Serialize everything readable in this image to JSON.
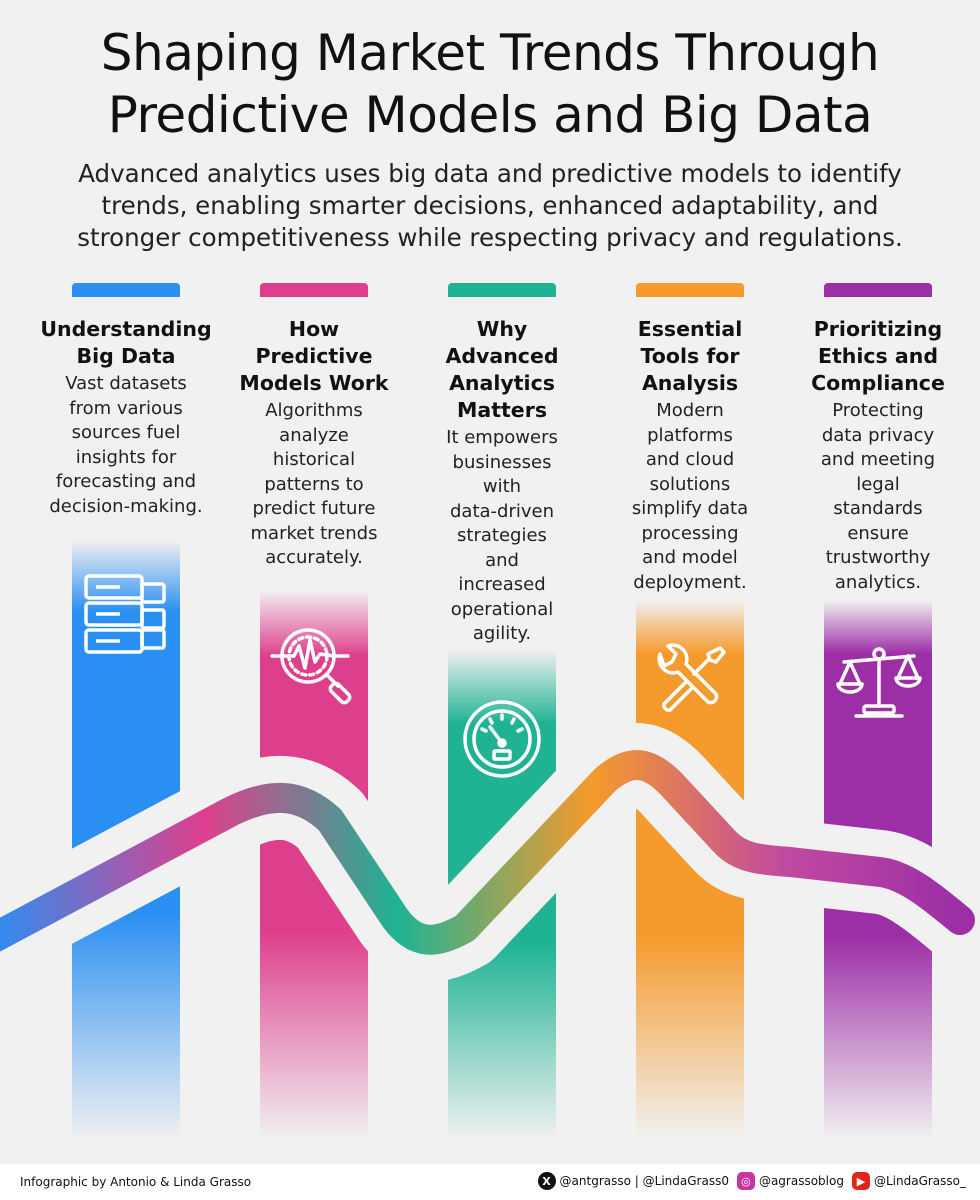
{
  "header": {
    "title_line1": "Shaping Market Trends Through",
    "title_line2": "Predictive Models and Big Data",
    "subtitle_line1": "Advanced analytics uses big data and predictive models to identify",
    "subtitle_line2": "trends, enabling smarter decisions, enhanced adaptability, and",
    "subtitle_line3": "stronger competitiveness while respecting privacy and regulations."
  },
  "columns": [
    {
      "title_lines": [
        "Understanding",
        "Big Data"
      ],
      "body_lines": [
        "Vast datasets",
        "from various",
        "sources fuel",
        "insights for",
        "forecasting and",
        "decision-making."
      ],
      "color": "#2a8ff2",
      "icon": "database-server-icon"
    },
    {
      "title_lines": [
        "How",
        "Predictive",
        "Models Work"
      ],
      "body_lines": [
        "Algorithms",
        "analyze",
        "historical",
        "patterns to",
        "predict future",
        "market trends",
        "accurately."
      ],
      "color": "#de3f8c",
      "icon": "magnifier-pulse-icon"
    },
    {
      "title_lines": [
        "Why",
        "Advanced",
        "Analytics",
        "Matters"
      ],
      "body_lines": [
        "It empowers",
        "businesses",
        "with",
        "data-driven",
        "strategies",
        "and",
        "increased",
        "operational",
        "agility."
      ],
      "color": "#1fb394",
      "icon": "speedometer-gauge-icon"
    },
    {
      "title_lines": [
        "Essential",
        "Tools for",
        "Analysis"
      ],
      "body_lines": [
        "Modern",
        "platforms",
        "and cloud",
        "solutions",
        "simplify data",
        "processing",
        "and model",
        "deployment."
      ],
      "color": "#f59a2c",
      "icon": "wrench-screwdriver-icon"
    },
    {
      "title_lines": [
        "Prioritizing",
        "Ethics and",
        "Compliance"
      ],
      "body_lines": [
        "Protecting",
        "data privacy",
        "and meeting",
        "legal",
        "standards",
        "ensure",
        "trustworthy",
        "analytics."
      ],
      "color": "#9c2ea6",
      "icon": "balance-scale-icon"
    }
  ],
  "footer": {
    "credit": "Infographic by Antonio & Linda Grasso",
    "x_handle": "@antgrasso | @LindaGrass0",
    "instagram_handle": "@agrassoblog",
    "youtube_handle": "@LindaGrasso_"
  }
}
